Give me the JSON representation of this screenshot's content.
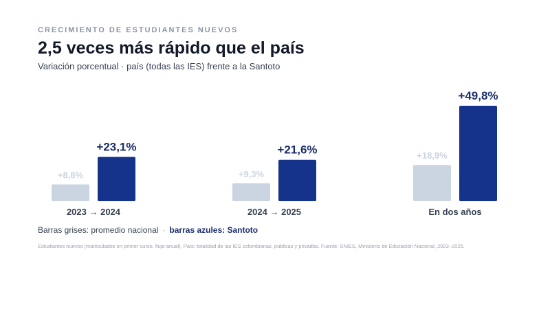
{
  "header": {
    "kicker": "CRECIMIENTO DE ESTUDIANTES NUEVOS",
    "title": "2,5 veces más rápido que el país",
    "subtitle": "Variación porcentual · país (todas las IES) frente a la Santoto"
  },
  "legend": {
    "grey_text": "Barras grises: promedio nacional",
    "separator": "·",
    "blue_text": "barras azules: Santoto"
  },
  "source": "Estudiantes nuevos (matriculados en primer curso, flujo anual). País: totalidad de las IES colombianas, públicas y privadas. Fuente: SNIES, Ministerio de Educación Nacional, 2023–2025.",
  "colors": {
    "national": "#cbd5e1",
    "national_label": "#cbd5e1",
    "santoto": "#16338c",
    "santoto_label": "#1a2e6e",
    "category_label": "#374151"
  },
  "chart_data": {
    "type": "bar",
    "categories": [
      "2023 → 2024",
      "2024 → 2025",
      "En dos años"
    ],
    "series": [
      {
        "values": [
          8.8,
          9.3,
          18.9
        ],
        "labels": [
          "+8,8%",
          "+9,3%",
          "+18,9%"
        ]
      },
      {
        "values": [
          23.1,
          21.6,
          49.8
        ],
        "labels": [
          "+23,1%",
          "+21,6%",
          "+49,8%"
        ]
      }
    ],
    "ylim": [
      0,
      49.8
    ],
    "grid": false,
    "legend": "below"
  }
}
